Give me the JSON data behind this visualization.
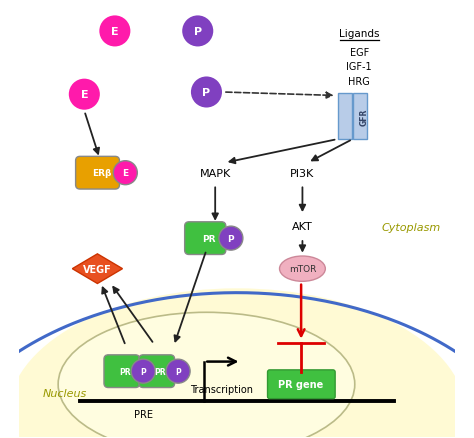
{
  "fig_width": 4.74,
  "fig_height": 4.39,
  "dpi": 100,
  "bg_color": "#ffffff",
  "cell_membrane_color": "#4169c8",
  "cell_membrane_lw": 2.0,
  "cytoplasm_text": "Cytoplasm",
  "nucleus_text": "Nucleus",
  "ligands_label": "Ligands",
  "ligands_items": [
    "EGF",
    "IGF-1",
    "HRG"
  ],
  "E_circle_color": "#ff1aab",
  "P_circle_color": "#8040c0",
  "E_label": "E",
  "P_label": "P",
  "ERb_rect_color": "#e8a000",
  "ERb_label": "ERβ",
  "ERb_E_color": "#ff1aab",
  "GFR_color": "#a0b8e0",
  "GFR_label": "GFR",
  "PR_rect_color": "#40c040",
  "PR_label": "PR",
  "PR_P_color": "#8040c0",
  "VEGF_color": "#e85020",
  "VEGF_label": "VEGF",
  "mTOR_color": "#f0b0c0",
  "mTOR_label": "mTOR",
  "PRE_label": "PRE",
  "transcription_label": "Transcription",
  "PR_gene_label": "PR gene",
  "PR_gene_color": "#40c040",
  "MAPK_label": "MAPK",
  "PI3K_label": "PI3K",
  "AKT_label": "AKT",
  "arrow_color": "#222222",
  "red_arrow_color": "#dd0000",
  "dashed_arrow_color": "#333333"
}
